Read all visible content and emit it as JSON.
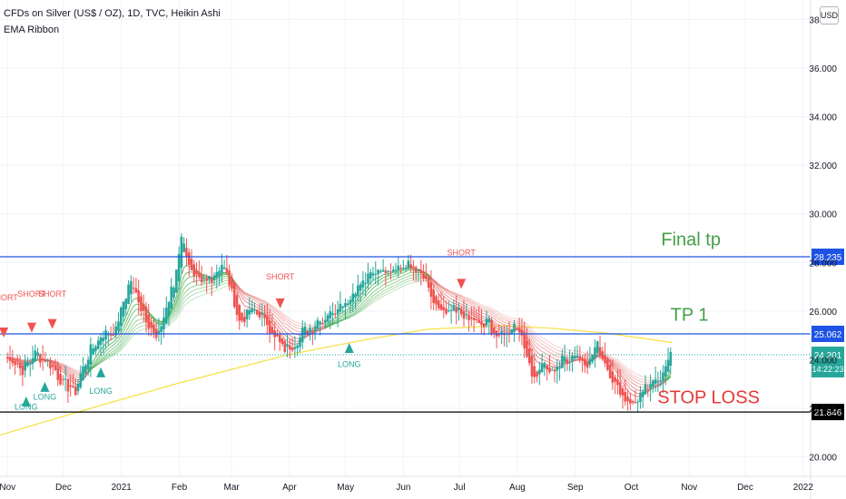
{
  "header": {
    "title": "CFDs on Silver (US$ / OZ), 1D, TVC, Heikin Ashi",
    "indicator": "EMA Ribbon",
    "currency": "USD"
  },
  "colors": {
    "up": "#26a69a",
    "down": "#ef5350",
    "ribbon_bull": "#4caf50",
    "ribbon_bear": "#e57373",
    "ema200": "#f7e24a",
    "level_blue": "#1e53e5",
    "level_black": "#000000",
    "tp_text": "#43a047",
    "sl_text": "#e53935",
    "last_price": "#26a69a"
  },
  "chart_data": {
    "type": "candlestick",
    "y_axis": {
      "ylim": [
        19.2,
        38.8
      ],
      "ticks": [
        "20.000",
        "22.000",
        "24.000",
        "26.000",
        "28.000",
        "30.000",
        "32.000",
        "34.000",
        "36.000",
        "38.000"
      ]
    },
    "x_axis": {
      "ticks": [
        {
          "label": "Nov",
          "d": 0
        },
        {
          "label": "Dec",
          "d": 30
        },
        {
          "label": "2021",
          "d": 61
        },
        {
          "label": "Feb",
          "d": 92
        },
        {
          "label": "Mar",
          "d": 120
        },
        {
          "label": "Apr",
          "d": 151
        },
        {
          "label": "May",
          "d": 181
        },
        {
          "label": "Jun",
          "d": 212
        },
        {
          "label": "Jul",
          "d": 242
        },
        {
          "label": "Aug",
          "d": 273
        },
        {
          "label": "Sep",
          "d": 304
        },
        {
          "label": "Oct",
          "d": 334
        },
        {
          "label": "Nov",
          "d": 365
        },
        {
          "label": "Dec",
          "d": 395
        },
        {
          "label": "2022",
          "d": 426
        }
      ],
      "xlim_days": [
        -4,
        430
      ]
    },
    "close_path": [
      [
        0,
        24.1
      ],
      [
        8,
        23.6
      ],
      [
        15,
        24.2
      ],
      [
        22,
        23.9
      ],
      [
        30,
        23.1
      ],
      [
        36,
        22.6
      ],
      [
        44,
        24.4
      ],
      [
        50,
        25.0
      ],
      [
        58,
        25.2
      ],
      [
        62,
        26.3
      ],
      [
        66,
        27.3
      ],
      [
        70,
        26.4
      ],
      [
        75,
        25.6
      ],
      [
        80,
        24.9
      ],
      [
        86,
        26.4
      ],
      [
        90,
        27.3
      ],
      [
        93,
        29.3
      ],
      [
        98,
        27.6
      ],
      [
        103,
        27.1
      ],
      [
        110,
        27.4
      ],
      [
        115,
        27.9
      ],
      [
        120,
        26.9
      ],
      [
        124,
        25.6
      ],
      [
        130,
        26.0
      ],
      [
        136,
        25.8
      ],
      [
        142,
        25.1
      ],
      [
        148,
        24.3
      ],
      [
        152,
        24.6
      ],
      [
        158,
        25.1
      ],
      [
        165,
        25.5
      ],
      [
        170,
        25.7
      ],
      [
        176,
        26.1
      ],
      [
        182,
        26.4
      ],
      [
        190,
        27.2
      ],
      [
        196,
        27.6
      ],
      [
        202,
        27.7
      ],
      [
        208,
        27.8
      ],
      [
        213,
        27.9
      ],
      [
        219,
        27.6
      ],
      [
        224,
        27.3
      ],
      [
        228,
        26.3
      ],
      [
        234,
        25.9
      ],
      [
        240,
        26.0
      ],
      [
        246,
        25.8
      ],
      [
        252,
        25.4
      ],
      [
        258,
        25.5
      ],
      [
        262,
        24.9
      ],
      [
        268,
        25.1
      ],
      [
        273,
        25.5
      ],
      [
        278,
        24.2
      ],
      [
        282,
        23.2
      ],
      [
        286,
        23.8
      ],
      [
        292,
        23.5
      ],
      [
        298,
        24.0
      ],
      [
        304,
        24.2
      ],
      [
        310,
        23.8
      ],
      [
        316,
        24.6
      ],
      [
        322,
        23.6
      ],
      [
        326,
        22.9
      ],
      [
        330,
        22.4
      ],
      [
        334,
        22.2
      ],
      [
        338,
        22.5
      ],
      [
        344,
        22.9
      ],
      [
        350,
        23.4
      ],
      [
        356,
        24.2
      ]
    ],
    "ema200_path": [
      [
        -4,
        20.9
      ],
      [
        40,
        21.9
      ],
      [
        90,
        23.0
      ],
      [
        150,
        24.2
      ],
      [
        190,
        24.8
      ],
      [
        225,
        25.25
      ],
      [
        265,
        25.4
      ],
      [
        290,
        25.3
      ],
      [
        320,
        25.1
      ],
      [
        356,
        24.7
      ]
    ],
    "levels": [
      {
        "name": "Final tp",
        "value": 28.235,
        "label": "28.235",
        "style": "blue"
      },
      {
        "name": "TP 1",
        "value": 25.062,
        "label": "25.062",
        "style": "blue"
      },
      {
        "name": "STOP LOSS",
        "value": 21.846,
        "label": "21.846",
        "style": "black"
      }
    ],
    "last_price": {
      "value": 24.201,
      "label": "24.201",
      "countdown": "14:22:23"
    },
    "annotations": [
      {
        "text": "Final tp",
        "d": 350,
        "y": 28.7
      },
      {
        "text": "TP 1",
        "d": 355,
        "y": 25.6
      },
      {
        "text": "STOP LOSS",
        "d": 348,
        "y": 22.2
      }
    ],
    "signals": [
      {
        "type": "short",
        "d": -2,
        "y": 25.1,
        "text": "SHORT",
        "text_y": 26.45
      },
      {
        "type": "short",
        "d": 13,
        "y": 25.3,
        "text": "SHORT",
        "text_y": 26.6
      },
      {
        "type": "short",
        "d": 24,
        "y": 25.45,
        "text": "SHORT",
        "text_y": 26.6
      },
      {
        "type": "short",
        "d": 146,
        "y": 26.3,
        "text": "SHORT",
        "text_y": 27.3
      },
      {
        "type": "short",
        "d": 243,
        "y": 27.1,
        "text": "SHORT",
        "text_y": 28.3
      },
      {
        "type": "long",
        "d": 10,
        "y": 22.3,
        "text": "LONG",
        "text_y": 21.95
      },
      {
        "type": "long",
        "d": 20,
        "y": 22.9,
        "text": "LONG",
        "text_y": 22.35
      },
      {
        "type": "long",
        "d": 50,
        "y": 23.5,
        "text": "LONG",
        "text_y": 22.6
      },
      {
        "type": "long",
        "d": 183,
        "y": 24.5,
        "text": "LONG",
        "text_y": 23.7
      }
    ]
  }
}
